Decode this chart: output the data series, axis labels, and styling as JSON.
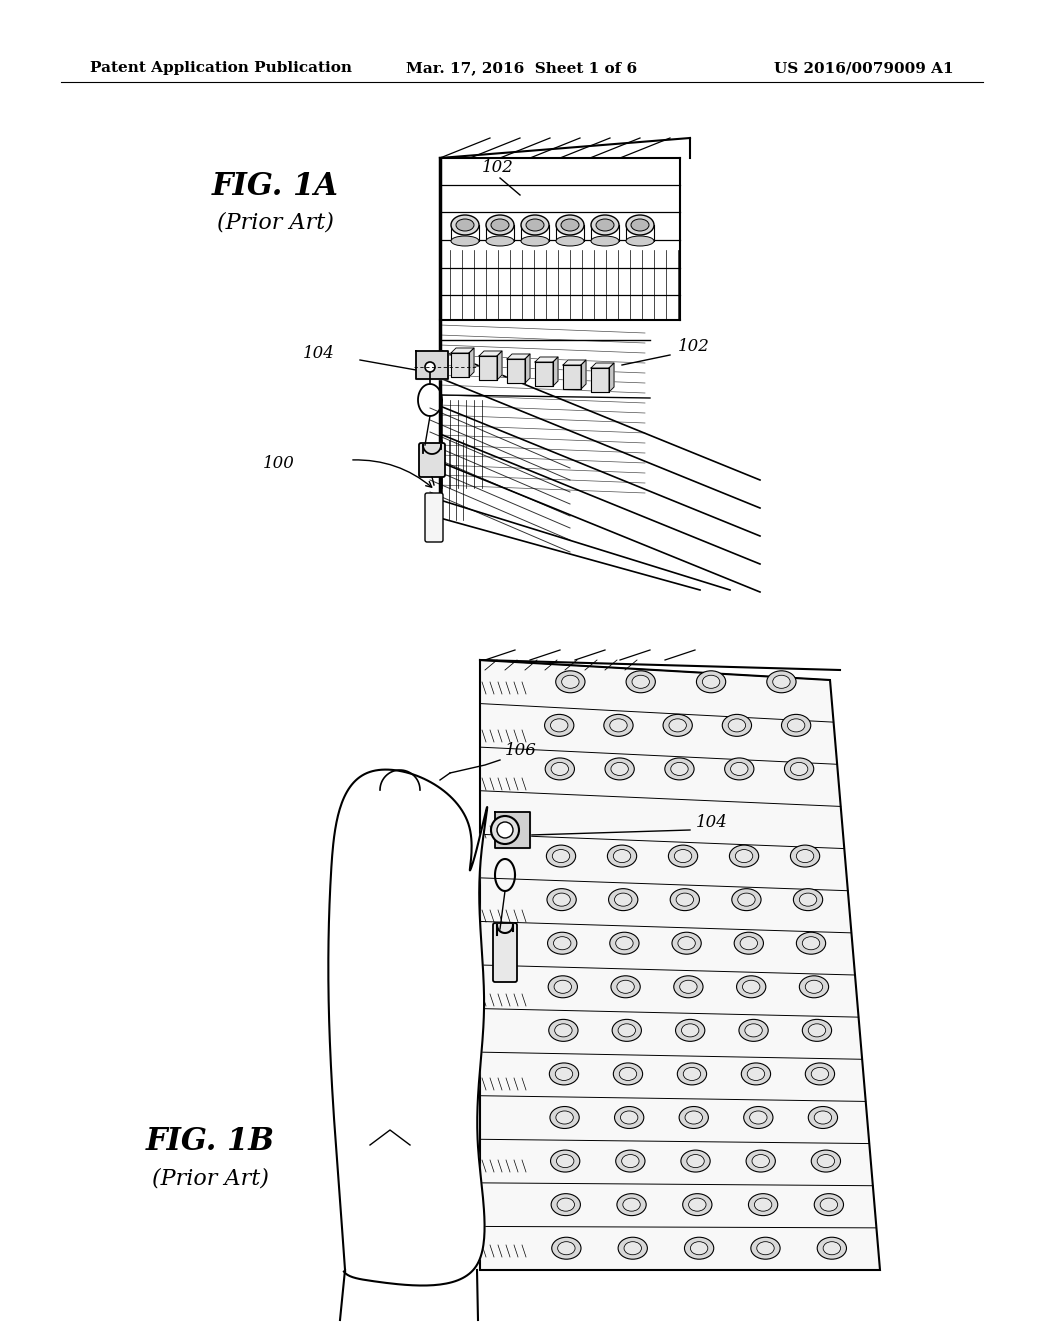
{
  "bg_color": "#ffffff",
  "line_color": "#000000",
  "header": {
    "left": "Patent Application Publication",
    "center": "Mar. 17, 2016  Sheet 1 of 6",
    "right": "US 2016/0079009 A1",
    "fontsize": 11
  }
}
